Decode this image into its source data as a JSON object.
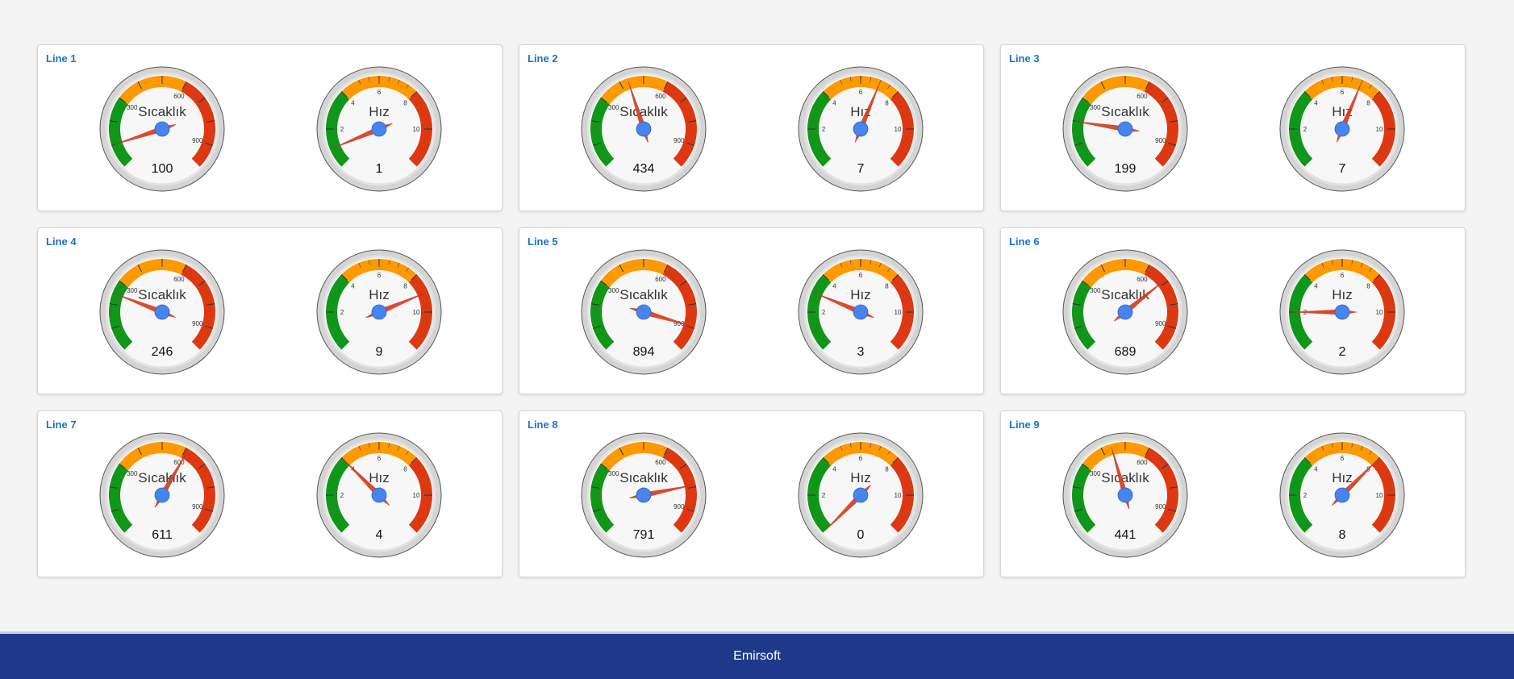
{
  "colors": {
    "green": "#109618",
    "orange": "#ff9900",
    "red": "#dc3912",
    "needle": "#dc3912",
    "hub": "#4684ee",
    "title": "#1a73c9",
    "footer": "#1e398a"
  },
  "gauge_types": {
    "temp": {
      "label": "Sıcaklık",
      "min": 0,
      "max": 1000,
      "bands": [
        [
          0,
          300,
          "green"
        ],
        [
          300,
          600,
          "orange"
        ],
        [
          600,
          1000,
          "red"
        ]
      ],
      "tick_labels": [
        {
          "value": 300,
          "text": "300"
        },
        {
          "value": 600,
          "text": "600"
        },
        {
          "value": 900,
          "text": "900"
        }
      ],
      "major_ticks": [
        100,
        200,
        300,
        400,
        500,
        600,
        700,
        800,
        900
      ],
      "minor_ticks": []
    },
    "speed": {
      "label": "Hız",
      "min": 0,
      "max": 12,
      "bands": [
        [
          0,
          4,
          "green"
        ],
        [
          4,
          8,
          "orange"
        ],
        [
          8,
          12,
          "red"
        ]
      ],
      "tick_labels": [
        {
          "value": 2,
          "text": "2"
        },
        {
          "value": 4,
          "text": "4"
        },
        {
          "value": 6,
          "text": "6"
        },
        {
          "value": 8,
          "text": "8"
        },
        {
          "value": 10,
          "text": "10"
        }
      ],
      "major_ticks": [
        2,
        4,
        6,
        8,
        10
      ],
      "minor_ticks": [
        5,
        5.5,
        6.5,
        7,
        7.5
      ]
    }
  },
  "panels": [
    {
      "title": "Line 1",
      "temp": {
        "value": 100,
        "display": "100"
      },
      "speed": {
        "value": 1,
        "display": "1"
      }
    },
    {
      "title": "Line 2",
      "temp": {
        "value": 434,
        "display": "434"
      },
      "speed": {
        "value": 7,
        "display": "7"
      }
    },
    {
      "title": "Line 3",
      "temp": {
        "value": 199,
        "display": "199"
      },
      "speed": {
        "value": 7,
        "display": "7"
      }
    },
    {
      "title": "Line 4",
      "temp": {
        "value": 246,
        "display": "246"
      },
      "speed": {
        "value": 9,
        "display": "9"
      }
    },
    {
      "title": "Line 5",
      "temp": {
        "value": 894,
        "display": "894"
      },
      "speed": {
        "value": 3,
        "display": "3"
      }
    },
    {
      "title": "Line 6",
      "temp": {
        "value": 689,
        "display": "689"
      },
      "speed": {
        "value": 2,
        "display": "2"
      }
    },
    {
      "title": "Line 7",
      "temp": {
        "value": 611,
        "display": "611"
      },
      "speed": {
        "value": 4,
        "display": "4"
      }
    },
    {
      "title": "Line 8",
      "temp": {
        "value": 791,
        "display": "791"
      },
      "speed": {
        "value": 0,
        "display": "0"
      }
    },
    {
      "title": "Line 9",
      "temp": {
        "value": 441,
        "display": "441"
      },
      "speed": {
        "value": 8,
        "display": "8"
      }
    }
  ],
  "footer": {
    "text": "Emirsoft"
  }
}
